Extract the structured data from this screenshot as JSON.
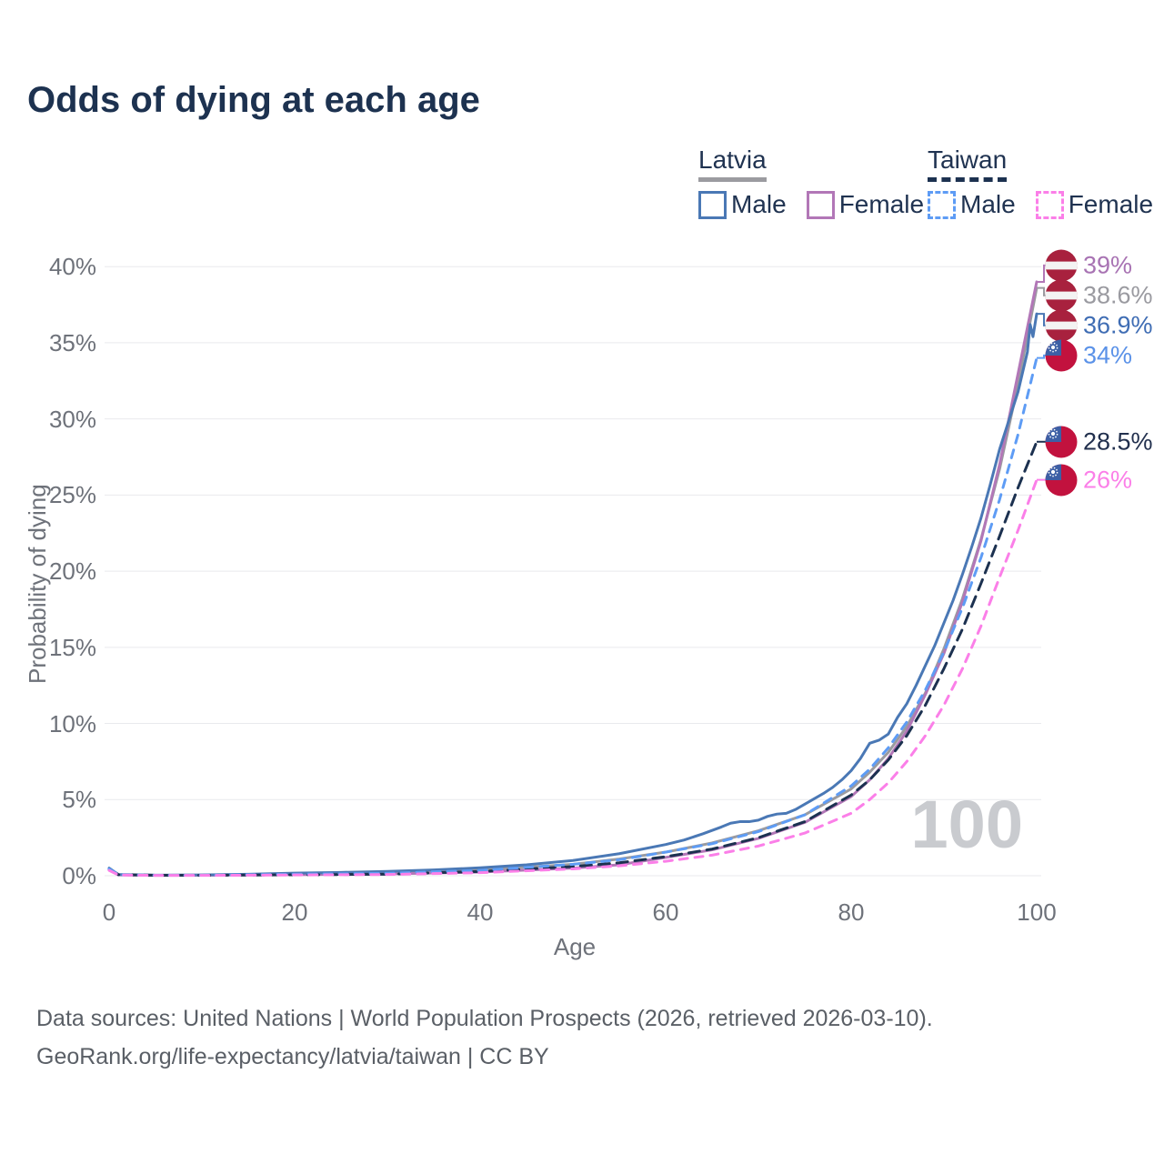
{
  "title": "Odds of dying at each age",
  "legend": {
    "groups": [
      {
        "label": "Latvia",
        "items": [
          {
            "label": "Male"
          },
          {
            "label": "Female"
          }
        ]
      },
      {
        "label": "Taiwan",
        "items": [
          {
            "label": "Male"
          },
          {
            "label": "Female"
          }
        ]
      }
    ]
  },
  "chart_data": {
    "type": "line",
    "title": "Odds of dying at each age",
    "xlabel": "Age",
    "ylabel": "Probability of dying",
    "xlim": [
      0,
      100
    ],
    "ylim": [
      0,
      40
    ],
    "x_ticks": [
      "0",
      "20",
      "40",
      "60",
      "80",
      "100"
    ],
    "y_ticks": [
      "0%",
      "5%",
      "10%",
      "15%",
      "20%",
      "25%",
      "30%",
      "35%",
      "40%"
    ],
    "grid": "horizontal",
    "legend_position": "top-right",
    "watermark": "100",
    "flag_colors": {
      "latvia_red": "#a8213e",
      "taiwan_red": "#c2123e",
      "taiwan_blue": "#3d5fa5"
    },
    "series": [
      {
        "name": "Latvia Male",
        "color": "#4a78b5",
        "dash": "",
        "flag": "latvia",
        "end_label": "36.9%",
        "label_color": "#3f6db4",
        "x": [
          0,
          1,
          5,
          10,
          15,
          20,
          25,
          30,
          35,
          40,
          45,
          50,
          55,
          60,
          62,
          64,
          66,
          67,
          68,
          69,
          70,
          71,
          72,
          73,
          74,
          75,
          76,
          77,
          78,
          79,
          80,
          81,
          82,
          83,
          84,
          85,
          86,
          87,
          88,
          89,
          90,
          91,
          92,
          93,
          94,
          95,
          96,
          97,
          98,
          99,
          99.3,
          99.6,
          100
        ],
        "y": [
          0.5,
          0.08,
          0.04,
          0.05,
          0.1,
          0.17,
          0.22,
          0.28,
          0.38,
          0.52,
          0.72,
          1.0,
          1.45,
          2.05,
          2.35,
          2.75,
          3.2,
          3.45,
          3.55,
          3.55,
          3.65,
          3.9,
          4.05,
          4.1,
          4.35,
          4.7,
          5.05,
          5.4,
          5.8,
          6.3,
          6.9,
          7.7,
          8.7,
          8.9,
          9.3,
          10.4,
          11.3,
          12.5,
          13.8,
          15.1,
          16.6,
          18.1,
          19.8,
          21.6,
          23.5,
          25.7,
          28.0,
          29.9,
          31.8,
          34.4,
          36.2,
          35.4,
          36.9
        ]
      },
      {
        "name": "Latvia Female",
        "color": "#b277b7",
        "dash": "",
        "flag": "latvia",
        "end_label": "39%",
        "label_color": "#a873b3",
        "x": [
          0,
          1,
          5,
          10,
          20,
          30,
          40,
          50,
          55,
          60,
          65,
          70,
          75,
          80,
          82,
          84,
          86,
          88,
          90,
          92,
          94,
          96,
          98,
          100
        ],
        "y": [
          0.4,
          0.05,
          0.02,
          0.03,
          0.07,
          0.12,
          0.24,
          0.5,
          0.72,
          1.2,
          1.7,
          2.45,
          3.5,
          5.2,
          6.3,
          7.7,
          9.5,
          11.9,
          14.6,
          18.0,
          22.0,
          27.0,
          33.0,
          39.0
        ]
      },
      {
        "name": "Latvia",
        "color": "#9b9ba0",
        "dash": "",
        "flag": "latvia",
        "end_label": "38.6%",
        "label_color": "#9a9aa0",
        "x": [
          0,
          1,
          5,
          10,
          20,
          30,
          40,
          50,
          55,
          60,
          65,
          70,
          75,
          80,
          82,
          84,
          86,
          88,
          90,
          92,
          94,
          96,
          98,
          100
        ],
        "y": [
          0.45,
          0.07,
          0.03,
          0.04,
          0.13,
          0.2,
          0.38,
          0.75,
          1.1,
          1.55,
          2.15,
          2.95,
          4.0,
          5.7,
          6.8,
          8.1,
          9.8,
          12.0,
          14.9,
          18.2,
          22.1,
          26.7,
          32.3,
          38.6
        ]
      },
      {
        "name": "Taiwan Male",
        "color": "#5e9cf5",
        "dash": "9 8",
        "flag": "taiwan",
        "end_label": "34%",
        "label_color": "#5b92e8",
        "x": [
          0,
          1,
          5,
          10,
          20,
          30,
          40,
          50,
          55,
          60,
          65,
          70,
          75,
          80,
          82,
          84,
          86,
          88,
          90,
          92,
          94,
          96,
          98,
          100
        ],
        "y": [
          0.45,
          0.06,
          0.03,
          0.03,
          0.1,
          0.16,
          0.35,
          0.75,
          1.05,
          1.55,
          2.1,
          2.9,
          4.0,
          5.9,
          7.0,
          8.4,
          10.1,
          12.2,
          14.7,
          17.6,
          20.9,
          24.7,
          29.0,
          34.0
        ]
      },
      {
        "name": "Taiwan Female",
        "color": "#fb7fe8",
        "dash": "9 8",
        "flag": "taiwan",
        "end_label": "26%",
        "label_color": "#fb7fe8",
        "x": [
          0,
          1,
          5,
          10,
          20,
          30,
          40,
          50,
          55,
          60,
          65,
          70,
          75,
          80,
          82,
          84,
          86,
          88,
          90,
          92,
          94,
          96,
          98,
          100
        ],
        "y": [
          0.35,
          0.05,
          0.02,
          0.02,
          0.05,
          0.08,
          0.2,
          0.45,
          0.65,
          0.95,
          1.35,
          1.95,
          2.8,
          4.1,
          5.0,
          6.1,
          7.5,
          9.2,
          11.2,
          13.6,
          16.4,
          19.6,
          22.7,
          26.0
        ]
      },
      {
        "name": "Taiwan",
        "color": "#1c3150",
        "dash": "12 8",
        "flag": "taiwan",
        "end_label": "28.5%",
        "label_color": "#22304e",
        "x": [
          0,
          1,
          5,
          10,
          20,
          30,
          40,
          50,
          55,
          60,
          65,
          70,
          75,
          80,
          82,
          84,
          86,
          88,
          90,
          92,
          94,
          96,
          98,
          100
        ],
        "y": [
          0.4,
          0.07,
          0.03,
          0.03,
          0.06,
          0.1,
          0.28,
          0.6,
          0.85,
          1.25,
          1.75,
          2.5,
          3.55,
          5.3,
          6.3,
          7.6,
          9.2,
          11.2,
          13.6,
          16.2,
          19.2,
          22.3,
          25.5,
          28.5
        ]
      }
    ]
  },
  "footer": {
    "line1": "Data sources: United Nations | World Population Prospects (2026, retrieved 2026-03-10).",
    "line2": "GeoRank.org/life-expectancy/latvia/taiwan | CC BY"
  }
}
